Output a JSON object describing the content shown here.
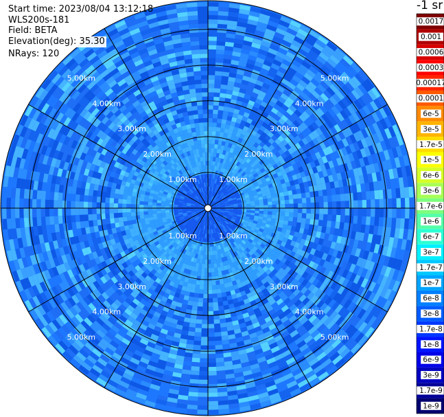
{
  "header": {
    "start_time": "Start time: 2023/08/04 13:12:18",
    "instrument": "WLS200s-181",
    "field": "Field: BETA",
    "elevation": "Elevation(deg): 35.30",
    "nrays": "NRays: 120"
  },
  "colorbar": {
    "unit_title": "-1 sr",
    "levels": [
      {
        "label": "0.0017",
        "color": "#7f0000"
      },
      {
        "label": "0.001",
        "color": "#b00000"
      },
      {
        "label": "0.0006",
        "color": "#d80000"
      },
      {
        "label": "0.0003",
        "color": "#ff0000"
      },
      {
        "label": "0.00017",
        "color": "#ff2400"
      },
      {
        "label": "0.0001",
        "color": "#ff5a00"
      },
      {
        "label": "6e-5",
        "color": "#ff8a00"
      },
      {
        "label": "3e-5",
        "color": "#ffb400"
      },
      {
        "label": "1.7e-5",
        "color": "#ffdd00"
      },
      {
        "label": "1e-5",
        "color": "#fbff00"
      },
      {
        "label": "6e-6",
        "color": "#d6ff28"
      },
      {
        "label": "3e-6",
        "color": "#a8ff55"
      },
      {
        "label": "1.7e-6",
        "color": "#7dff7d"
      },
      {
        "label": "1e-6",
        "color": "#55ffa8"
      },
      {
        "label": "6e-7",
        "color": "#2bffd4"
      },
      {
        "label": "3e-7",
        "color": "#00f0ff"
      },
      {
        "label": "1.7e-7",
        "color": "#00c8ff"
      },
      {
        "label": "1e-7",
        "color": "#00a4ff"
      },
      {
        "label": "6e-8",
        "color": "#0080ff"
      },
      {
        "label": "3e-8",
        "color": "#005cff"
      },
      {
        "label": "1.7e-8",
        "color": "#0038ff"
      },
      {
        "label": "1e-8",
        "color": "#0014ff"
      },
      {
        "label": "6e-9",
        "color": "#0000e8"
      },
      {
        "label": "3e-9",
        "color": "#0000c0"
      },
      {
        "label": "1.7e-9",
        "color": "#000098"
      },
      {
        "label": "1e-9",
        "color": "#000070"
      }
    ]
  },
  "chart_data": {
    "type": "heatmap",
    "projection": "polar (PPI scan)",
    "field": "BETA",
    "n_rays": 120,
    "elevation_deg": 35.3,
    "range_rings_km": [
      1,
      2,
      3,
      4,
      5
    ],
    "range_ring_labels": [
      "1.00km",
      "2.00km",
      "3.00km",
      "4.00km",
      "5.00km"
    ],
    "max_range_km": 5.8,
    "azimuth_spokes_deg": [
      0,
      30,
      60,
      90,
      120,
      150,
      180,
      210,
      240,
      270,
      300,
      330
    ],
    "dominant_value_by_range": [
      {
        "range_km": [
          0.0,
          0.6
        ],
        "typical_beta": "6e-8"
      },
      {
        "range_km": [
          0.6,
          1.0
        ],
        "typical_beta": "6e-8 to 1e-7"
      },
      {
        "range_km": [
          1.0,
          2.5
        ],
        "typical_beta": "1e-7"
      },
      {
        "range_km": [
          2.5,
          5.8
        ],
        "typical_beta": "6e-8 to 1.7e-7"
      }
    ],
    "grid": true
  }
}
